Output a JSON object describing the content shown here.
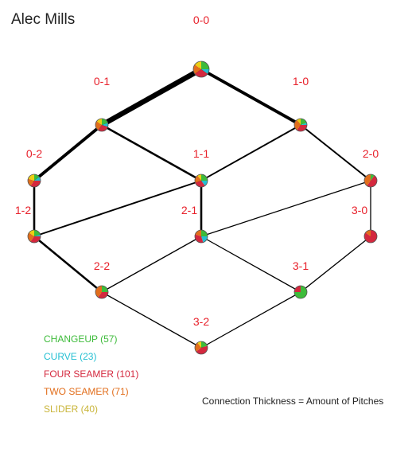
{
  "title": "Alec Mills",
  "colors": {
    "CHANGEUP": "#3dbb3a",
    "CURVE": "#23bfd2",
    "FOUR SEAMER": "#d4283e",
    "TWO SEAMER": "#e26e1c",
    "SLIDER": "#eccf14",
    "label": "#e8212b"
  },
  "legend": [
    {
      "pitch": "CHANGEUP",
      "text": "CHANGEUP (57)",
      "color": "#3dbb3a"
    },
    {
      "pitch": "CURVE",
      "text": "CURVE (23)",
      "color": "#23bfd2"
    },
    {
      "pitch": "FOUR SEAMER",
      "text": "FOUR SEAMER (101)",
      "color": "#d4283e"
    },
    {
      "pitch": "TWO SEAMER",
      "text": "TWO SEAMER (71)",
      "color": "#e26e1c"
    },
    {
      "pitch": "SLIDER",
      "text": "SLIDER (40)",
      "color": "#c9b53a"
    }
  ],
  "note": "Connection Thickness = Amount of Pitches",
  "counts": [
    {
      "id": "0-0",
      "label": "0-0"
    },
    {
      "id": "0-1",
      "label": "0-1"
    },
    {
      "id": "1-0",
      "label": "1-0"
    },
    {
      "id": "0-2",
      "label": "0-2"
    },
    {
      "id": "1-1",
      "label": "1-1"
    },
    {
      "id": "2-0",
      "label": "2-0"
    },
    {
      "id": "1-2",
      "label": "1-2"
    },
    {
      "id": "2-1",
      "label": "2-1"
    },
    {
      "id": "3-0",
      "label": "3-0"
    },
    {
      "id": "2-2",
      "label": "2-2"
    },
    {
      "id": "3-1",
      "label": "3-1"
    },
    {
      "id": "3-2",
      "label": "3-2"
    }
  ],
  "pitch_mix": {
    "0-0": {
      "CHANGEUP": 0.25,
      "CURVE": 0.1,
      "FOUR SEAMER": 0.3,
      "TWO SEAMER": 0.2,
      "SLIDER": 0.15
    },
    "0-1": {
      "CHANGEUP": 0.2,
      "CURVE": 0.1,
      "FOUR SEAMER": 0.3,
      "TWO SEAMER": 0.25,
      "SLIDER": 0.15
    },
    "1-0": {
      "CHANGEUP": 0.2,
      "CURVE": 0.05,
      "FOUR SEAMER": 0.35,
      "TWO SEAMER": 0.3,
      "SLIDER": 0.1
    },
    "0-2": {
      "CHANGEUP": 0.15,
      "CURVE": 0.1,
      "FOUR SEAMER": 0.35,
      "TWO SEAMER": 0.2,
      "SLIDER": 0.2
    },
    "1-1": {
      "CHANGEUP": 0.25,
      "CURVE": 0.15,
      "FOUR SEAMER": 0.3,
      "TWO SEAMER": 0.2,
      "SLIDER": 0.1
    },
    "2-0": {
      "CHANGEUP": 0.1,
      "FOUR SEAMER": 0.5,
      "TWO SEAMER": 0.4
    },
    "1-2": {
      "CHANGEUP": 0.2,
      "CURVE": 0.05,
      "FOUR SEAMER": 0.35,
      "TWO SEAMER": 0.25,
      "SLIDER": 0.15
    },
    "2-1": {
      "CHANGEUP": 0.25,
      "CURVE": 0.2,
      "FOUR SEAMER": 0.35,
      "TWO SEAMER": 0.2
    },
    "3-0": {
      "FOUR SEAMER": 0.85,
      "TWO SEAMER": 0.15
    },
    "2-2": {
      "CHANGEUP": 0.25,
      "FOUR SEAMER": 0.35,
      "TWO SEAMER": 0.4
    },
    "3-1": {
      "CHANGEUP": 0.75,
      "FOUR SEAMER": 0.25
    },
    "3-2": {
      "CHANGEUP": 0.2,
      "FOUR SEAMER": 0.45,
      "TWO SEAMER": 0.25,
      "SLIDER": 0.1
    }
  },
  "connections": [
    {
      "from": "0-0",
      "to": "0-1",
      "weight": 5
    },
    {
      "from": "0-0",
      "to": "1-0",
      "weight": 3
    },
    {
      "from": "0-1",
      "to": "0-2",
      "weight": 3
    },
    {
      "from": "0-1",
      "to": "1-1",
      "weight": 2
    },
    {
      "from": "1-0",
      "to": "1-1",
      "weight": 1.5
    },
    {
      "from": "1-0",
      "to": "2-0",
      "weight": 1.5
    },
    {
      "from": "0-2",
      "to": "1-2",
      "weight": 2
    },
    {
      "from": "1-1",
      "to": "1-2",
      "weight": 1.5
    },
    {
      "from": "1-1",
      "to": "2-1",
      "weight": 2
    },
    {
      "from": "2-0",
      "to": "2-1",
      "weight": 1
    },
    {
      "from": "2-0",
      "to": "3-0",
      "weight": 1
    },
    {
      "from": "1-2",
      "to": "2-2",
      "weight": 2
    },
    {
      "from": "2-1",
      "to": "2-2",
      "weight": 1
    },
    {
      "from": "2-1",
      "to": "3-1",
      "weight": 1
    },
    {
      "from": "3-0",
      "to": "3-1",
      "weight": 1
    },
    {
      "from": "2-2",
      "to": "3-2",
      "weight": 1
    },
    {
      "from": "3-1",
      "to": "3-2",
      "weight": 1
    }
  ]
}
